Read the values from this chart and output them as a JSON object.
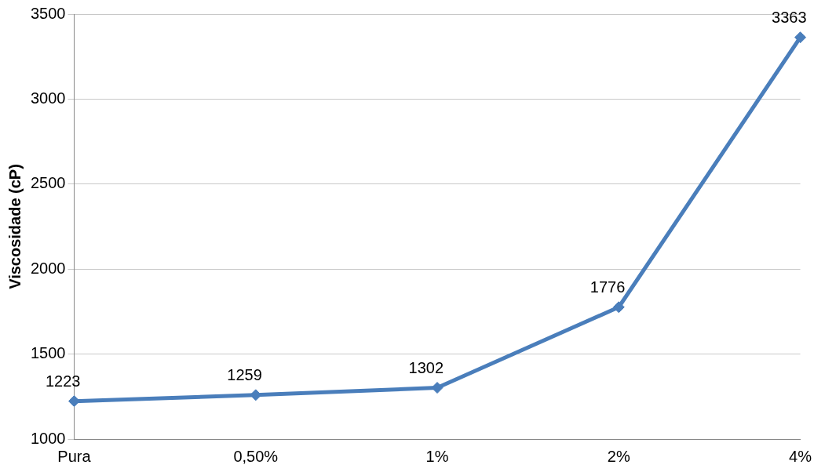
{
  "chart_data": {
    "type": "line",
    "ylabel": "Viscosidade (cP)",
    "categories": [
      "Pura",
      "0,50%",
      "1%",
      "2%",
      "4%"
    ],
    "series": [
      {
        "color": "#4a7ebb",
        "values": [
          1223,
          1259,
          1302,
          1776,
          3363
        ]
      }
    ],
    "ylim": [
      1000,
      3500
    ],
    "yticks": [
      1000,
      1500,
      2000,
      2500,
      3000,
      3500
    ],
    "grid": "y",
    "marker": "diamond",
    "line_style": "solid",
    "data_labels": true,
    "legend": false
  }
}
